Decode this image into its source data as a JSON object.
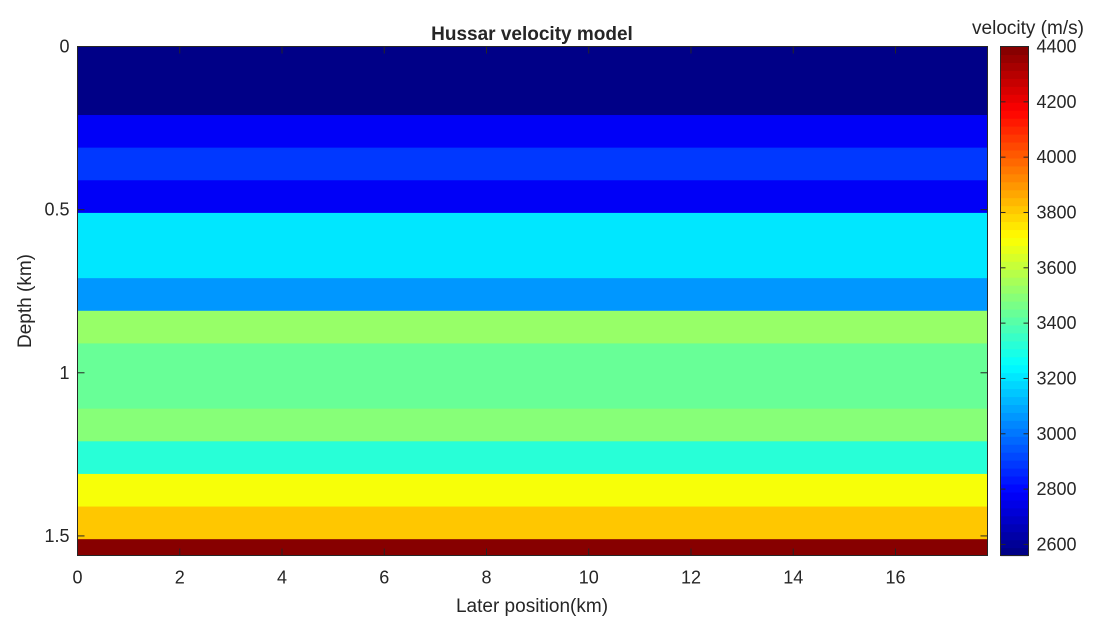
{
  "chart_data": {
    "type": "heatmap",
    "title": "Hussar velocity model",
    "xlabel": "Later position(km)",
    "ylabel": "Depth (km)",
    "colorbar_label": "velocity (m/s)",
    "xlim": [
      0,
      17.8
    ],
    "ylim": [
      1.56,
      0
    ],
    "y_reversed": true,
    "grid": false,
    "colormap": "jet",
    "clim": [
      2560,
      4400
    ],
    "xticks": [
      0,
      2,
      4,
      6,
      8,
      10,
      12,
      14,
      16
    ],
    "xtick_labels": [
      "0",
      "2",
      "4",
      "6",
      "8",
      "10",
      "12",
      "14",
      "16"
    ],
    "yticks": [
      0,
      0.5,
      1,
      1.5
    ],
    "ytick_labels": [
      "0",
      "0.5",
      "1",
      "1.5"
    ],
    "cbar_ticks": [
      2600,
      2800,
      3000,
      3200,
      3400,
      3600,
      3800,
      4000,
      4200,
      4400
    ],
    "cbar_tick_labels": [
      "2600",
      "2800",
      "3000",
      "3200",
      "3400",
      "3600",
      "3800",
      "4000",
      "4200",
      "4400"
    ],
    "layers": [
      {
        "top": 0.0,
        "bottom": 0.21,
        "velocity": 2580
      },
      {
        "top": 0.21,
        "bottom": 0.31,
        "velocity": 2780
      },
      {
        "top": 0.31,
        "bottom": 0.41,
        "velocity": 2880
      },
      {
        "top": 0.41,
        "bottom": 0.51,
        "velocity": 2780
      },
      {
        "top": 0.51,
        "bottom": 0.71,
        "velocity": 3200
      },
      {
        "top": 0.71,
        "bottom": 0.81,
        "velocity": 3060
      },
      {
        "top": 0.81,
        "bottom": 0.91,
        "velocity": 3520
      },
      {
        "top": 0.91,
        "bottom": 1.11,
        "velocity": 3430
      },
      {
        "top": 1.11,
        "bottom": 1.21,
        "velocity": 3500
      },
      {
        "top": 1.21,
        "bottom": 1.31,
        "velocity": 3330
      },
      {
        "top": 1.31,
        "bottom": 1.41,
        "velocity": 3690
      },
      {
        "top": 1.41,
        "bottom": 1.51,
        "velocity": 3820
      },
      {
        "top": 1.51,
        "bottom": 1.56,
        "velocity": 4400
      }
    ]
  }
}
